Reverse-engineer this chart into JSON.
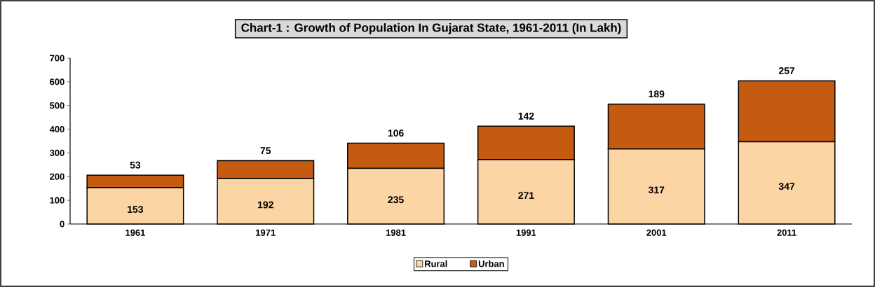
{
  "chart_data": {
    "type": "bar",
    "title": "Chart-1 : Growth of Population In Gujarat State, 1961-2011 (In Lakh)",
    "categories": [
      "1961",
      "1971",
      "1981",
      "1991",
      "2001",
      "2011"
    ],
    "stacked": true,
    "data_labels": true,
    "legend": "bottom",
    "grid": false,
    "ylim": [
      0,
      700
    ],
    "yticks": [
      0,
      100,
      200,
      300,
      400,
      500,
      600,
      700
    ],
    "series": [
      {
        "name": "Rural",
        "color": "#fcd5a5",
        "values": [
          153,
          192,
          235,
          271,
          317,
          347
        ]
      },
      {
        "name": "Urban",
        "color": "#c55a11",
        "values": [
          53,
          75,
          106,
          142,
          189,
          257
        ]
      }
    ]
  }
}
